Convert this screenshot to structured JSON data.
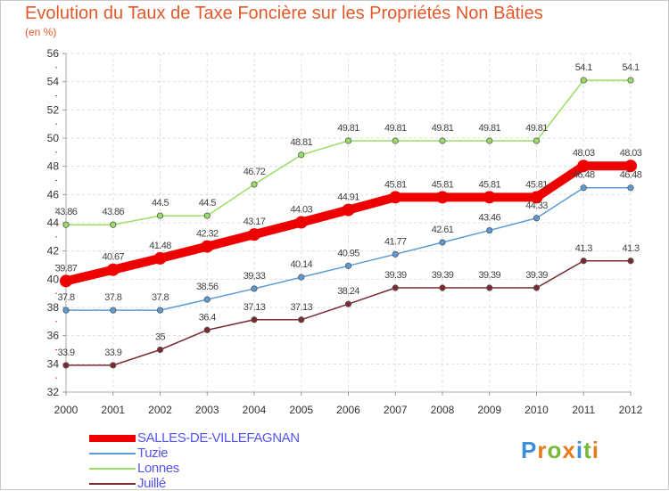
{
  "title": "Evolution du Taux de Taxe Foncière sur les Propriétés Non Bâties",
  "unit_label": "(en %)",
  "logo": {
    "letters": [
      "P",
      "r",
      "o",
      "x",
      "i",
      "t",
      "i"
    ],
    "colors": [
      "#3a8fd8",
      "#e87b1e",
      "#7ab83a",
      "#e87b1e",
      "#3a8fd8",
      "#7ab83a",
      "#e87b1e"
    ]
  },
  "chart_data": {
    "type": "line",
    "title": "Evolution du Taux de Taxe Foncière sur les Propriétés Non Bâties",
    "ylabel": "(en %)",
    "x": [
      "2000",
      "2001",
      "2002",
      "2003",
      "2004",
      "2005",
      "2006",
      "2007",
      "2008",
      "2009",
      "2010",
      "2011",
      "2012"
    ],
    "ylim": [
      32,
      56
    ],
    "yticks": [
      32,
      34,
      36,
      38,
      40,
      42,
      44,
      46,
      48,
      50,
      52,
      54,
      56
    ],
    "grid": true,
    "legend": "bottom-left",
    "series": [
      {
        "name": "SALLES-DE-VILLEFAGNAN",
        "color": "#ee0000",
        "emphasis": true,
        "values": [
          39.87,
          40.67,
          41.48,
          42.32,
          43.17,
          44.03,
          44.91,
          45.81,
          45.81,
          45.81,
          45.81,
          48.03,
          48.03
        ],
        "labels": [
          "39.87",
          "40.67",
          "41.48",
          "42.32",
          "43.17",
          "44.03",
          "44.91",
          "45.81",
          "45.81",
          "45.81",
          "45.81",
          "48.03",
          "48.03"
        ]
      },
      {
        "name": "Tuzie",
        "color": "#5b9bd5",
        "emphasis": false,
        "values": [
          37.8,
          37.8,
          37.8,
          38.56,
          39.33,
          40.14,
          40.95,
          41.77,
          42.61,
          43.46,
          44.33,
          46.48,
          46.48
        ],
        "labels": [
          "37.8",
          "37.8",
          "37.8",
          "38.56",
          "39.33",
          "40.14",
          "40.95",
          "41.77",
          "42.61",
          "43.46",
          "44.33",
          "46.48",
          "46.48"
        ]
      },
      {
        "name": "Lonnes",
        "color": "#99dd66",
        "emphasis": false,
        "values": [
          43.86,
          43.86,
          44.5,
          44.5,
          46.72,
          48.81,
          49.81,
          49.81,
          49.81,
          49.81,
          49.81,
          54.1,
          54.1
        ],
        "labels": [
          "43.86",
          "43.86",
          "44.5",
          "44.5",
          "46.72",
          "48.81",
          "49.81",
          "49.81",
          "49.81",
          "49.81",
          "49.81",
          "54.1",
          "54.1"
        ]
      },
      {
        "name": "Juillé",
        "color": "#7a2a30",
        "emphasis": false,
        "values": [
          33.9,
          33.9,
          35,
          36.4,
          37.13,
          37.13,
          38.24,
          39.39,
          39.39,
          39.39,
          39.39,
          41.3,
          41.3
        ],
        "labels": [
          "33.9",
          "33.9",
          "35",
          "36.4",
          "37.13",
          "37.13",
          "38.24",
          "39.39",
          "39.39",
          "39.39",
          "39.39",
          "41.3",
          "41.3"
        ]
      }
    ]
  }
}
